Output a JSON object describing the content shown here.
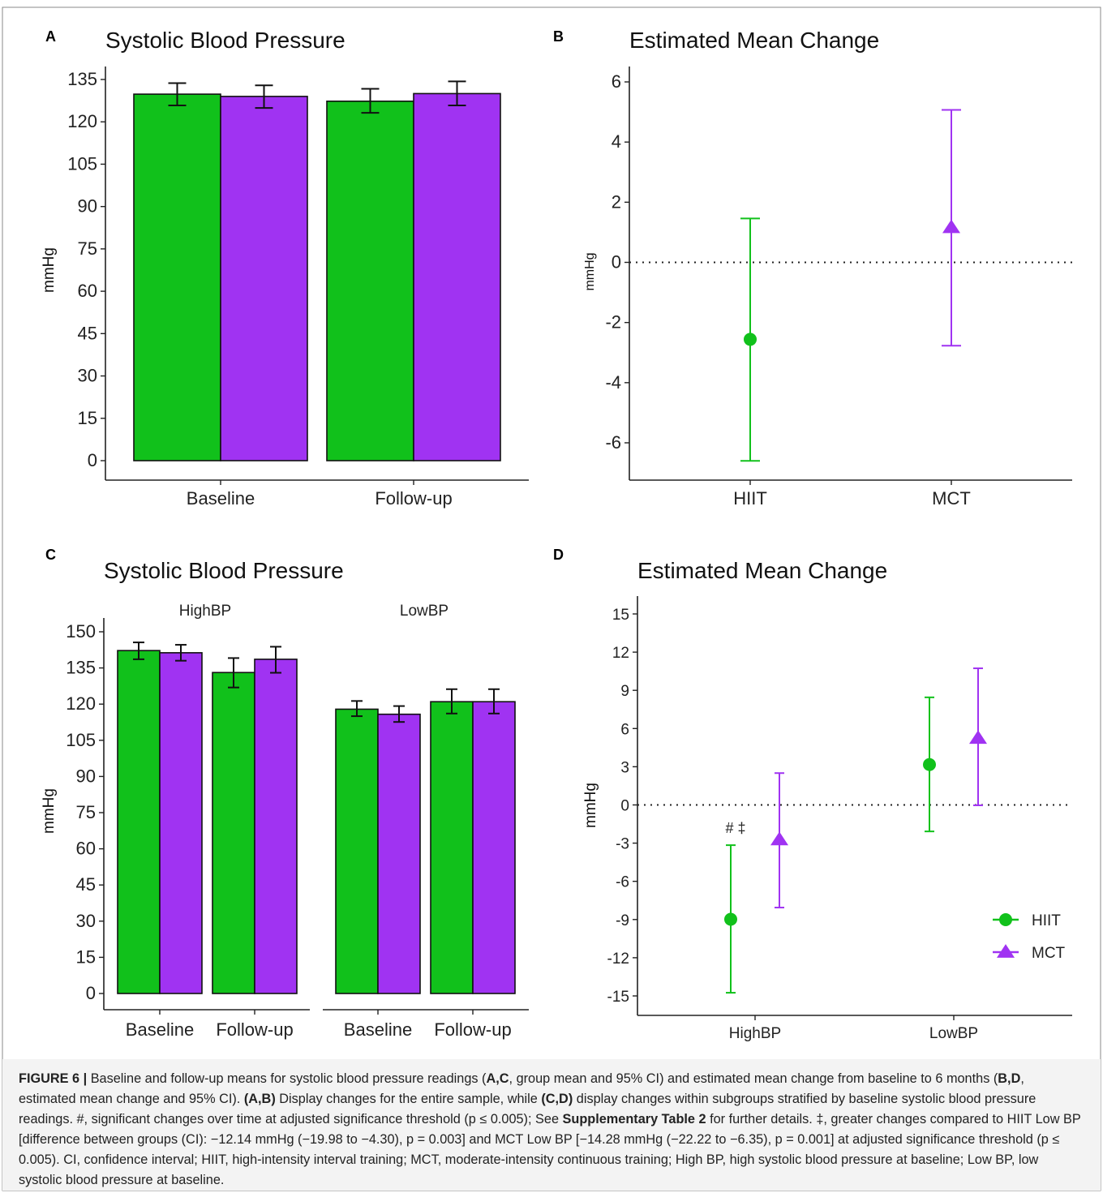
{
  "figure": {
    "panels": [
      {
        "letter": "A",
        "title": "Systolic Blood Pressure"
      },
      {
        "letter": "B",
        "title": "Estimated Mean Change"
      },
      {
        "letter": "C",
        "title": "Systolic Blood Pressure"
      },
      {
        "letter": "D",
        "title": "Estimated Mean Change"
      }
    ],
    "ylabel": "mmHg",
    "annotation_D": "# ‡",
    "caption": {
      "label": "FIGURE 6 |",
      "segments": [
        {
          "t": " Baseline and follow-up means for systolic blood pressure readings (",
          "b": false
        },
        {
          "t": "A,C",
          "b": true
        },
        {
          "t": ", group mean and 95% CI) and estimated mean change from baseline to 6 months (",
          "b": false
        },
        {
          "t": "B,D",
          "b": true
        },
        {
          "t": ", estimated mean change and 95% CI). ",
          "b": false
        },
        {
          "t": "(A,B)",
          "b": true
        },
        {
          "t": " Display changes for the entire sample, while ",
          "b": false
        },
        {
          "t": "(C,D)",
          "b": true
        },
        {
          "t": " display changes within subgroups stratified by baseline systolic blood pressure readings. #, significant changes over time at adjusted significance threshold (p ≤ 0.005); See ",
          "b": false
        },
        {
          "t": "Supplementary Table 2",
          "b": true
        },
        {
          "t": " for further details. ‡, greater changes compared to HIIT Low BP [difference between groups (CI): −12.14 mmHg (−19.98 to −4.30), p = 0.003] and MCT Low BP [−14.28 mmHg (−22.22 to −6.35), p = 0.001] at adjusted significance threshold (p ≤ 0.005). CI, confidence interval; HIIT, high-intensity interval training; MCT, moderate-intensity continuous training; High BP, high systolic blood pressure at baseline; Low BP, low systolic blood pressure at baseline.",
          "b": false
        }
      ]
    }
  },
  "chart_data": [
    {
      "panel": "A",
      "type": "bar",
      "title": "Systolic Blood Pressure",
      "ylabel": "mmHg",
      "ylim": [
        0,
        135
      ],
      "yticks": [
        0,
        15,
        30,
        45,
        60,
        75,
        90,
        105,
        120,
        135
      ],
      "categories": [
        "Baseline",
        "Follow-up"
      ],
      "series": [
        {
          "group": "HIIT",
          "color": "#11c11b",
          "values": [
            129.8,
            127.3
          ],
          "ci_low": [
            125.8,
            123.2
          ],
          "ci_high": [
            133.7,
            131.7
          ]
        },
        {
          "group": "MCT",
          "color": "#a033f2",
          "values": [
            129.0,
            130.0
          ],
          "ci_low": [
            124.9,
            125.8
          ],
          "ci_high": [
            132.9,
            134.3
          ]
        }
      ]
    },
    {
      "panel": "B",
      "type": "scatter",
      "title": "Estimated Mean Change",
      "ylabel": "mmHg",
      "ylim": [
        -6.6,
        6.6
      ],
      "yticks": [
        -6,
        -4,
        -2,
        0,
        2,
        4,
        6
      ],
      "categories": [
        "HIIT",
        "MCT"
      ],
      "reference_line": 0,
      "series": [
        {
          "group": "HIIT",
          "color": "#11c11b",
          "marker": "circle",
          "values": [
            -2.56
          ],
          "ci_low": [
            -6.6
          ],
          "ci_high": [
            1.46
          ]
        },
        {
          "group": "MCT",
          "color": "#a033f2",
          "marker": "triangle",
          "values": [
            1.16
          ],
          "ci_low": [
            -2.77
          ],
          "ci_high": [
            5.07
          ]
        }
      ]
    },
    {
      "panel": "C",
      "type": "bar",
      "title": "Systolic Blood Pressure",
      "ylabel": "mmHg",
      "ylim": [
        0,
        150
      ],
      "yticks": [
        0,
        15,
        30,
        45,
        60,
        75,
        90,
        105,
        120,
        135,
        150
      ],
      "facets": [
        {
          "name": "HighBP",
          "categories": [
            "Baseline",
            "Follow-up"
          ],
          "series": [
            {
              "group": "HIIT",
              "color": "#11c11b",
              "values": [
                142.2,
                133.1
              ],
              "ci_low": [
                138.6,
                126.9
              ],
              "ci_high": [
                145.6,
                139.1
              ]
            },
            {
              "group": "MCT",
              "color": "#a033f2",
              "values": [
                141.3,
                138.6
              ],
              "ci_low": [
                138.0,
                133.0
              ],
              "ci_high": [
                144.6,
                143.8
              ]
            }
          ]
        },
        {
          "name": "LowBP",
          "categories": [
            "Baseline",
            "Follow-up"
          ],
          "series": [
            {
              "group": "HIIT",
              "color": "#11c11b",
              "values": [
                117.9,
                121.0
              ],
              "ci_low": [
                115.0,
                116.1
              ],
              "ci_high": [
                121.3,
                126.2
              ]
            },
            {
              "group": "MCT",
              "color": "#a033f2",
              "values": [
                115.8,
                121.0
              ],
              "ci_low": [
                112.6,
                116.1
              ],
              "ci_high": [
                119.2,
                126.2
              ]
            }
          ]
        }
      ]
    },
    {
      "panel": "D",
      "type": "scatter",
      "title": "Estimated Mean Change",
      "ylabel": "mmHg",
      "ylim": [
        -16.5,
        16.5
      ],
      "yticks": [
        -15,
        -12,
        -9,
        -6,
        -3,
        0,
        3,
        6,
        9,
        12,
        15
      ],
      "categories": [
        "HighBP",
        "LowBP"
      ],
      "reference_line": 0,
      "legend": {
        "position": "bottom-right",
        "entries": [
          {
            "label": "HIIT",
            "marker": "circle",
            "color": "#11c11b"
          },
          {
            "label": "MCT",
            "marker": "triangle",
            "color": "#a033f2"
          }
        ]
      },
      "series": [
        {
          "name": "HIIT",
          "color": "#11c11b",
          "marker": "circle",
          "values": [
            -8.98,
            3.17
          ],
          "ci_low": [
            -14.75,
            -2.08
          ],
          "ci_high": [
            -3.16,
            8.45
          ]
        },
        {
          "name": "MCT",
          "color": "#a033f2",
          "marker": "triangle",
          "values": [
            -2.73,
            5.24
          ],
          "ci_low": [
            -8.06,
            -0.03
          ],
          "ci_high": [
            2.5,
            10.73
          ]
        }
      ]
    }
  ]
}
